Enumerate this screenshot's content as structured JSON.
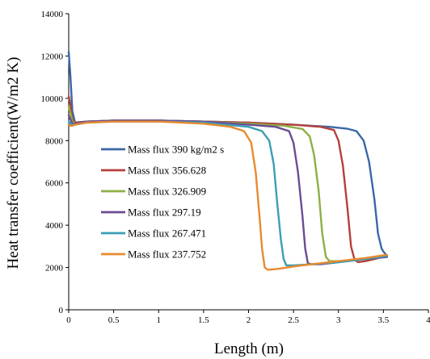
{
  "chart_data": {
    "type": "line",
    "title": "",
    "xlabel": "Length (m)",
    "ylabel": "Heat transfer coefficient(W/m2 K)",
    "xlim": [
      0,
      4
    ],
    "ylim": [
      0,
      14000
    ],
    "xticks": [
      "0",
      "0.5",
      "1",
      "1.5",
      "2",
      "2.5",
      "3",
      "3.5",
      "4"
    ],
    "yticks": [
      "0",
      "2000",
      "4000",
      "6000",
      "8000",
      "10000",
      "12000",
      "14000"
    ],
    "grid": false,
    "legend_position": "left-center",
    "series": [
      {
        "name": "Mass flux 390 kg/m2 s",
        "color": "#3A67A7",
        "x": [
          0.0,
          0.02,
          0.04,
          0.07,
          0.2,
          0.5,
          1.0,
          1.5,
          2.0,
          2.5,
          2.9,
          3.1,
          3.2,
          3.28,
          3.34,
          3.4,
          3.44,
          3.48,
          3.5,
          3.52,
          3.54
        ],
        "y": [
          12200,
          11000,
          9400,
          8850,
          8900,
          8950,
          8950,
          8900,
          8850,
          8750,
          8650,
          8560,
          8450,
          8000,
          7000,
          5200,
          3600,
          2900,
          2750,
          2650,
          2550
        ]
      },
      {
        "name": "Mass flux 356.628",
        "color": "#B5403C",
        "x": [
          0.0,
          0.02,
          0.04,
          0.07,
          0.2,
          0.5,
          1.0,
          1.5,
          2.0,
          2.5,
          2.8,
          2.95,
          3.0,
          3.05,
          3.1,
          3.14,
          3.18,
          3.22,
          3.3,
          3.4,
          3.54
        ],
        "y": [
          10100,
          9700,
          9000,
          8850,
          8900,
          8950,
          8950,
          8900,
          8850,
          8750,
          8650,
          8500,
          8000,
          6800,
          4800,
          3000,
          2350,
          2250,
          2300,
          2400,
          2550
        ]
      },
      {
        "name": "Mass flux 326.909",
        "color": "#8DB045",
        "x": [
          0.0,
          0.02,
          0.04,
          0.07,
          0.2,
          0.5,
          1.0,
          1.5,
          2.0,
          2.4,
          2.6,
          2.68,
          2.73,
          2.78,
          2.82,
          2.86,
          2.9,
          3.0,
          3.2,
          3.54
        ],
        "y": [
          9600,
          9300,
          8900,
          8800,
          8900,
          8950,
          8950,
          8900,
          8800,
          8700,
          8550,
          8200,
          7300,
          5600,
          3600,
          2500,
          2300,
          2300,
          2350,
          2550
        ]
      },
      {
        "name": "Mass flux 297.19",
        "color": "#6B4C93",
        "x": [
          0.0,
          0.02,
          0.04,
          0.07,
          0.2,
          0.5,
          1.0,
          1.5,
          2.0,
          2.3,
          2.45,
          2.5,
          2.55,
          2.6,
          2.63,
          2.66,
          2.7,
          2.8,
          3.0,
          3.3,
          3.54
        ],
        "y": [
          9200,
          9000,
          8800,
          8800,
          8900,
          8950,
          8950,
          8900,
          8750,
          8650,
          8450,
          7900,
          6500,
          4400,
          2900,
          2200,
          2150,
          2150,
          2250,
          2400,
          2500
        ]
      },
      {
        "name": "Mass flux 267.471",
        "color": "#3A9EB5",
        "x": [
          0.0,
          0.02,
          0.04,
          0.07,
          0.2,
          0.5,
          1.0,
          1.5,
          2.0,
          2.15,
          2.23,
          2.28,
          2.32,
          2.36,
          2.39,
          2.42,
          2.5,
          2.7,
          3.0,
          3.3,
          3.54
        ],
        "y": [
          8900,
          8800,
          8750,
          8750,
          8850,
          8900,
          8900,
          8850,
          8650,
          8450,
          8000,
          6900,
          5000,
          3300,
          2400,
          2100,
          2100,
          2150,
          2250,
          2400,
          2550
        ]
      },
      {
        "name": "Mass flux 237.752",
        "color": "#E88A2F",
        "x": [
          0.0,
          0.02,
          0.04,
          0.07,
          0.2,
          0.5,
          1.0,
          1.5,
          1.8,
          1.95,
          2.03,
          2.08,
          2.12,
          2.15,
          2.18,
          2.21,
          2.25,
          2.35,
          2.5,
          2.7,
          3.0,
          3.3,
          3.54
        ],
        "y": [
          8750,
          8700,
          8700,
          8750,
          8850,
          8900,
          8900,
          8800,
          8650,
          8450,
          7900,
          6500,
          4500,
          2900,
          2000,
          1900,
          1900,
          1950,
          2050,
          2150,
          2300,
          2450,
          2600
        ]
      }
    ]
  }
}
